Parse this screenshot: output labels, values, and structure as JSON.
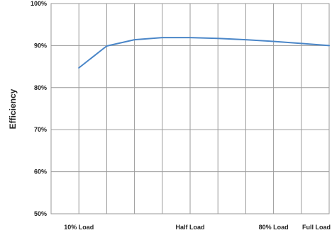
{
  "chart_data": {
    "type": "line",
    "title": "",
    "xlabel": "",
    "ylabel": "Efficiency",
    "x_range": [
      0,
      100
    ],
    "ylim": [
      50,
      100
    ],
    "y_ticks": [
      {
        "value": 50,
        "label": "50%"
      },
      {
        "value": 60,
        "label": "60%"
      },
      {
        "value": 70,
        "label": "70%"
      },
      {
        "value": 80,
        "label": "80%"
      },
      {
        "value": 90,
        "label": "90%"
      },
      {
        "value": 100,
        "label": "100%"
      }
    ],
    "x_ticks": [
      {
        "value": 10,
        "label": "10% Load"
      },
      {
        "value": 50,
        "label": "Half Load"
      },
      {
        "value": 80,
        "label": "80% Load"
      },
      {
        "value": 100,
        "label": "Full Load"
      }
    ],
    "vertical_grid_values": [
      0,
      10,
      20,
      30,
      40,
      50,
      60,
      70,
      80,
      90,
      100
    ],
    "grid": true,
    "legend": "none",
    "series": [
      {
        "color": "#4a86c8",
        "points": [
          {
            "x": 10,
            "y": 84.7
          },
          {
            "x": 20,
            "y": 89.9
          },
          {
            "x": 30,
            "y": 91.4
          },
          {
            "x": 40,
            "y": 91.9
          },
          {
            "x": 50,
            "y": 91.9
          },
          {
            "x": 60,
            "y": 91.7
          },
          {
            "x": 70,
            "y": 91.4
          },
          {
            "x": 80,
            "y": 91.0
          },
          {
            "x": 90,
            "y": 90.5
          },
          {
            "x": 100,
            "y": 90.0
          }
        ]
      }
    ]
  }
}
